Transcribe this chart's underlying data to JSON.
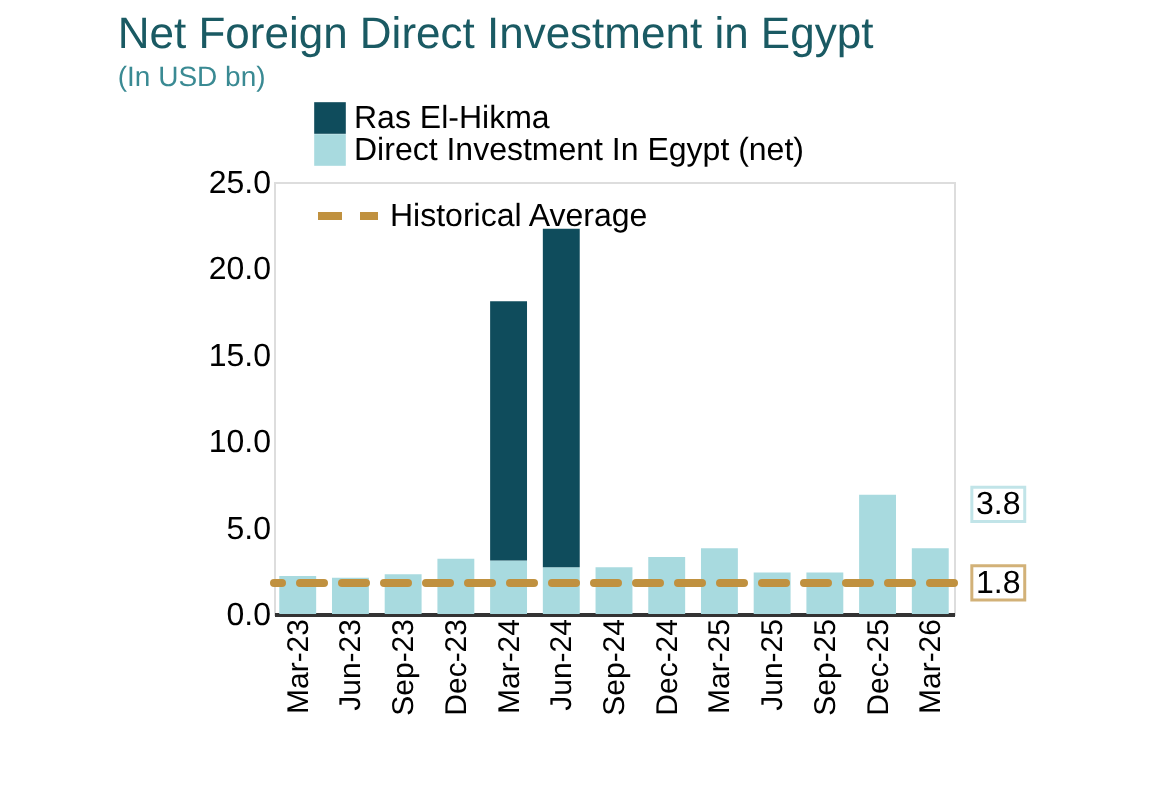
{
  "chart_data": {
    "type": "bar",
    "title": "Net Foreign Direct Investment in Egypt",
    "subtitle": "(In USD bn)",
    "categories": [
      "Mar-23",
      "Jun-23",
      "Sep-23",
      "Dec-23",
      "Mar-24",
      "Jun-24",
      "Sep-24",
      "Dec-24",
      "Mar-25",
      "Jun-25",
      "Sep-25",
      "Dec-25",
      "Mar-26"
    ],
    "stacked": true,
    "series": [
      {
        "name": "Direct Investment In Egypt (net)",
        "color": "#a8dadf",
        "values": [
          2.2,
          2.1,
          2.3,
          3.2,
          3.1,
          2.7,
          2.7,
          3.3,
          3.8,
          2.4,
          2.4,
          6.9,
          3.8
        ]
      },
      {
        "name": "Ras El-Hikma",
        "color": "#0f4c5c",
        "values": [
          null,
          null,
          null,
          null,
          15.0,
          19.6,
          null,
          null,
          null,
          null,
          null,
          null,
          null
        ]
      }
    ],
    "ref_lines": [
      {
        "axis": "y",
        "value": 1.8,
        "label": "Historical Average",
        "color": "#c0913f",
        "line_style": "dashed"
      }
    ],
    "annotations": [
      {
        "text": "3.8",
        "x": "Mar-26",
        "y": 3.8
      },
      {
        "text": "1.8",
        "x": "Mar-26",
        "y": 1.8
      }
    ],
    "ylim": [
      0,
      25
    ],
    "yticks": [
      {
        "value": 0,
        "label": "0.0"
      },
      {
        "value": 5,
        "label": "5.0"
      },
      {
        "value": 10,
        "label": "10.0"
      },
      {
        "value": 15,
        "label": "15.0"
      },
      {
        "value": 20,
        "label": "20.0"
      },
      {
        "value": 25,
        "label": "25.0"
      }
    ],
    "grid": false,
    "legend": "top"
  }
}
